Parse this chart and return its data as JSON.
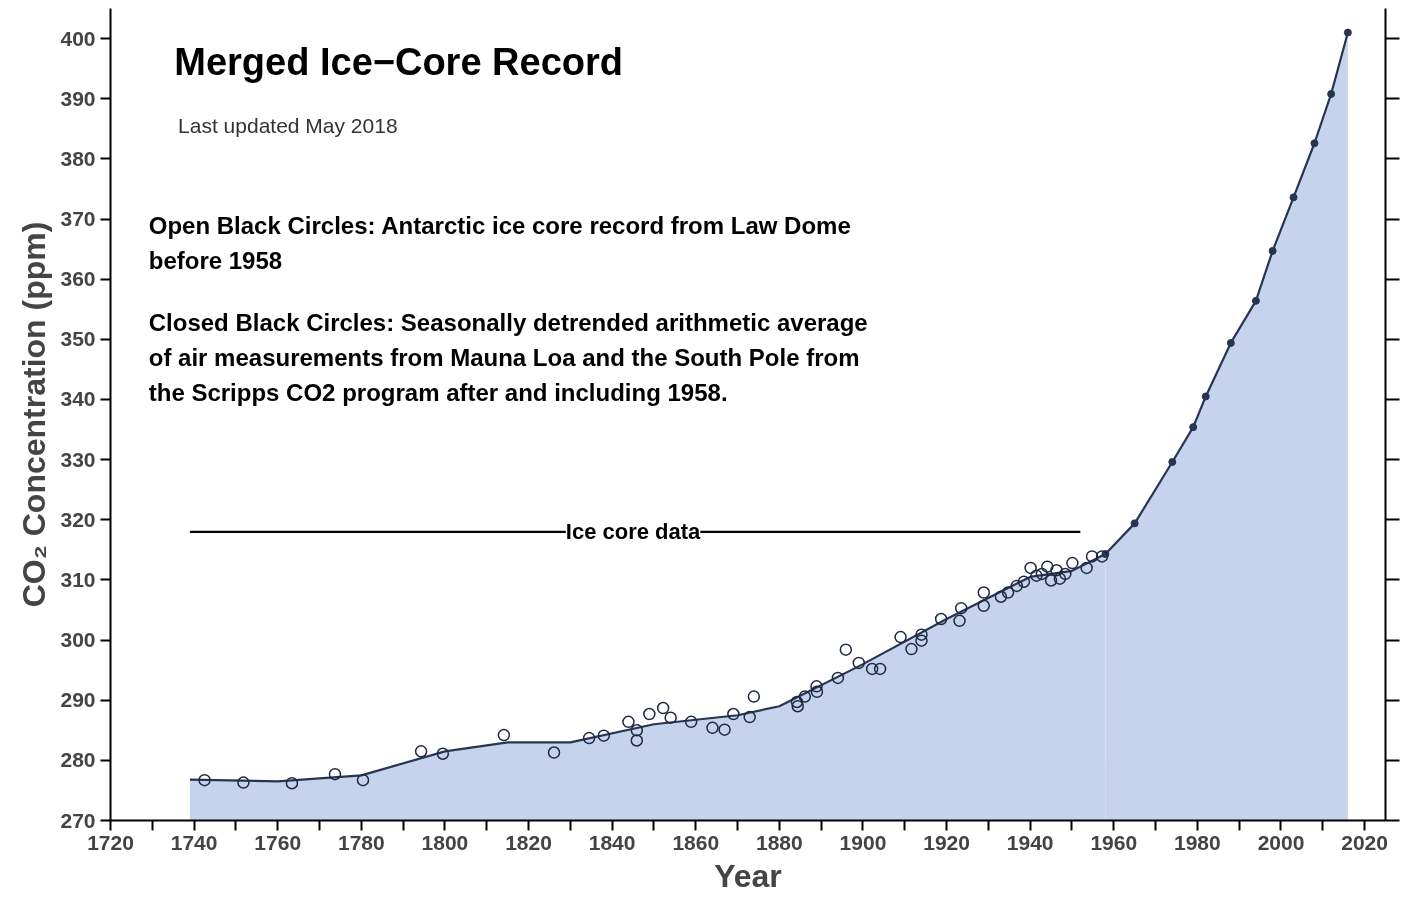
{
  "chart_data": {
    "type": "area",
    "title": "Merged Ice−Core Record",
    "subtitle": "Last updated May 2018",
    "xlabel": "Year",
    "ylabel": "CO₂ Concentration (ppm)",
    "annotations": [
      {
        "text": "Ice core data",
        "x": 1845,
        "y": 318
      },
      "Open Black Circles: Antarctic ice core record from Law Dome\nbefore 1958",
      "Closed Black Circles: Seasonally detrended arithmetic average\nof air measurements from Mauna Loa and the South Pole from\nthe Scripps CO2 program after and including 1958."
    ],
    "xlim": [
      1720,
      2025
    ],
    "ylim": [
      270,
      405
    ],
    "xticks": [
      1720,
      {
        "value": 1730,
        "label": null
      },
      1740,
      {
        "value": 1750,
        "label": null
      },
      1760,
      {
        "value": 1770,
        "label": null
      },
      1780,
      {
        "value": 1790,
        "label": null
      },
      1800,
      {
        "value": 1810,
        "label": null
      },
      1820,
      {
        "value": 1830,
        "label": null
      },
      1840,
      {
        "value": 1850,
        "label": null
      },
      1860,
      {
        "value": 1870,
        "label": null
      },
      1880,
      {
        "value": 1890,
        "label": null
      },
      1900,
      {
        "value": 1910,
        "label": null
      },
      1920,
      {
        "value": 1930,
        "label": null
      },
      1940,
      {
        "value": 1950,
        "label": null
      },
      1960,
      {
        "value": 1970,
        "label": null
      },
      1980,
      {
        "value": 1990,
        "label": null
      },
      2000,
      {
        "value": 2010,
        "label": null
      },
      2020
    ],
    "yticks": [
      270,
      280,
      290,
      300,
      310,
      320,
      330,
      340,
      350,
      360,
      370,
      380,
      390,
      400
    ],
    "grid": false,
    "legend": false,
    "series": [
      {
        "color": "#c5d3ec",
        "marker": "none",
        "x": [
          1739,
          1760,
          1780,
          1800,
          1815,
          1830,
          1850,
          1870,
          1880,
          1900,
          1920,
          1940,
          1950,
          1958
        ],
        "values": [
          276.8,
          276.5,
          277.5,
          281.5,
          283.0,
          283.0,
          286.0,
          287.5,
          289.0,
          296.0,
          303.5,
          310.5,
          311.5,
          314.3
        ]
      },
      {
        "type": "line",
        "color": "#000000",
        "line_style": "solid",
        "marker": "none",
        "x": [
          1739,
          1952
        ],
        "values": [
          318,
          318
        ]
      },
      {
        "type": "scatter",
        "color": "#1f2a40",
        "marker": "circle",
        "x": [
          1742.5,
          1751.8,
          1763.4,
          1773.7,
          1780.4,
          1794.3,
          1799.5,
          1814.1,
          1826.1,
          1834.5,
          1838,
          1843.9,
          1845.9,
          1845.9,
          1848.9,
          1852.2,
          1854,
          1858.9,
          1864,
          1866.9,
          1869,
          1872.9,
          1873.9,
          1884.2,
          1884.4,
          1886.1,
          1888.9,
          1889,
          1894,
          1895.9,
          1899,
          1902.2,
          1904.1,
          1909,
          1911.6,
          1914,
          1914,
          1918.7,
          1923.1,
          1923.5,
          1928.9,
          1928.9,
          1933,
          1934.7,
          1936.8,
          1938.5,
          1940.1,
          1941.5,
          1942.8,
          1944.1,
          1945,
          1946.3,
          1947.1,
          1948.4,
          1950.1,
          1953.5,
          1954.8,
          1957.2
        ],
        "values": [
          276.7,
          276.3,
          276.2,
          277.7,
          276.7,
          281.5,
          281.1,
          284.2,
          281.3,
          283.7,
          284.1,
          286.4,
          285.0,
          283.3,
          287.7,
          288.7,
          287.1,
          286.4,
          285.4,
          285.1,
          287.7,
          287.2,
          290.6,
          289.7,
          289.0,
          290.6,
          292.3,
          291.4,
          293.7,
          298.4,
          296.2,
          295.2,
          295.2,
          300.5,
          298.5,
          300.9,
          299.9,
          303.5,
          303.2,
          305.3,
          307.9,
          305.7,
          307.2,
          307.9,
          309.0,
          309.7,
          312.0,
          310.7,
          311.0,
          312.2,
          309.9,
          311.6,
          310.2,
          311.0,
          312.8,
          312.0,
          313.9,
          313.9
        ]
      },
      {
        "color": "#c5d3ec",
        "marker": "circle",
        "x": [
          1958,
          1965,
          1974,
          1979,
          1982,
          1988,
          1994,
          1998,
          2003,
          2008,
          2012,
          2016
        ],
        "values": [
          314.3,
          319.4,
          329.6,
          335.4,
          340.5,
          349.4,
          356.4,
          364.7,
          373.6,
          382.6,
          390.8,
          401.0
        ]
      }
    ]
  }
}
